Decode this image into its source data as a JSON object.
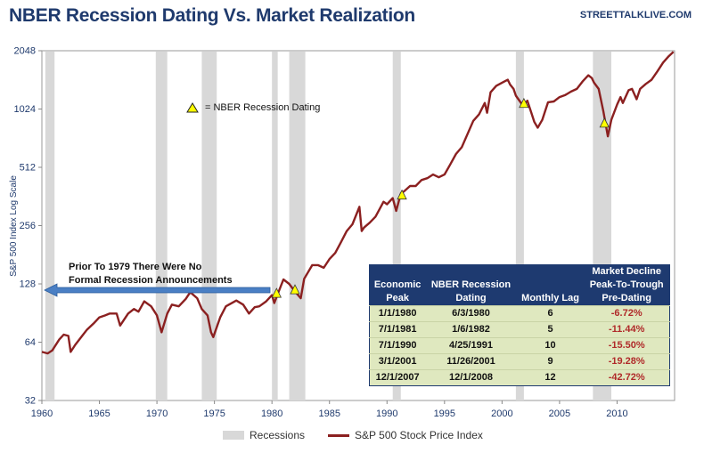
{
  "title": "NBER Recession Dating Vs. Market Realization",
  "source": "STREETTALKLIVE.COM",
  "legend": {
    "recessions": "Recessions",
    "sp500": "S&P 500 Stock Price Index"
  },
  "annotations": {
    "marker_legend": "= NBER Recession Dating",
    "arrow_line1": "Prior To 1979 There Were No",
    "arrow_line2": "Formal Recession Announcements"
  },
  "colors": {
    "line": "#8b2020",
    "recession": "#d8d8d8",
    "marker": "#ffff00",
    "header": "#1e3a70",
    "table_body": "#dfe8bf",
    "negative": "#b02a2a"
  },
  "table": {
    "headers": [
      [
        "Economic",
        "Peak"
      ],
      [
        "NBER Recession",
        "Dating"
      ],
      [
        "",
        "Monthly Lag"
      ],
      [
        "Market Decline",
        "Peak-To-Trough",
        "Pre-Dating"
      ]
    ],
    "rows": [
      [
        "1/1/1980",
        "6/3/1980",
        "6",
        "-6.72%"
      ],
      [
        "7/1/1981",
        "1/6/1982",
        "5",
        "-11.44%"
      ],
      [
        "7/1/1990",
        "4/25/1991",
        "10",
        "-15.50%"
      ],
      [
        "3/1/2001",
        "11/26/2001",
        "9",
        "-19.28%"
      ],
      [
        "12/1/2007",
        "12/1/2008",
        "12",
        "-42.72%"
      ]
    ]
  },
  "chart_data": {
    "type": "line",
    "title": "NBER Recession Dating Vs. Market Realization",
    "ylabel": "S&P 500 Index Log Scale",
    "xlabel": "",
    "yscale": "log2",
    "xlim": [
      1960,
      2015
    ],
    "ylim": [
      32,
      2048
    ],
    "xticks": [
      "1960",
      "1965",
      "1970",
      "1975",
      "1980",
      "1985",
      "1990",
      "1995",
      "2000",
      "2005",
      "2010"
    ],
    "yticks": [
      "32",
      "64",
      "128",
      "256",
      "512",
      "1024",
      "2048"
    ],
    "recessions": [
      [
        1960.3,
        1961.1
      ],
      [
        1969.9,
        1970.9
      ],
      [
        1973.9,
        1975.2
      ],
      [
        1980.0,
        1980.5
      ],
      [
        1981.5,
        1982.9
      ],
      [
        1990.5,
        1991.2
      ],
      [
        2001.2,
        2001.9
      ],
      [
        2007.9,
        2009.5
      ]
    ],
    "markers": [
      {
        "x": 1980.4,
        "y": 115
      },
      {
        "x": 1982.0,
        "y": 120
      },
      {
        "x": 1991.3,
        "y": 370
      },
      {
        "x": 2001.9,
        "y": 1100
      },
      {
        "x": 2008.9,
        "y": 870
      }
    ],
    "series": [
      {
        "name": "S&P 500 Stock Price Index",
        "x": [
          1960.0,
          1960.5,
          1960.9,
          1961.5,
          1961.9,
          1962.3,
          1962.5,
          1962.9,
          1963.5,
          1963.9,
          1964.5,
          1965.0,
          1965.5,
          1965.9,
          1966.5,
          1966.8,
          1967.5,
          1968.0,
          1968.4,
          1968.9,
          1969.5,
          1970.0,
          1970.4,
          1970.9,
          1971.3,
          1971.9,
          1972.5,
          1972.9,
          1973.5,
          1973.9,
          1974.4,
          1974.7,
          1974.9,
          1975.5,
          1976.0,
          1976.9,
          1977.5,
          1978.0,
          1978.5,
          1978.9,
          1979.5,
          1980.0,
          1980.2,
          1980.8,
          1981.0,
          1981.5,
          1982.0,
          1982.5,
          1982.8,
          1983.5,
          1984.0,
          1984.5,
          1985.0,
          1985.5,
          1986.0,
          1986.5,
          1987.0,
          1987.6,
          1987.8,
          1988.0,
          1988.5,
          1989.0,
          1989.7,
          1990.0,
          1990.5,
          1990.8,
          1991.2,
          1991.5,
          1992.0,
          1992.5,
          1993.0,
          1993.5,
          1994.0,
          1994.5,
          1995.0,
          1995.5,
          1996.0,
          1996.5,
          1997.0,
          1997.5,
          1998.0,
          1998.5,
          1998.7,
          1999.0,
          1999.5,
          2000.0,
          2000.5,
          2000.7,
          2001.0,
          2001.2,
          2001.7,
          2001.9,
          2002.2,
          2002.5,
          2002.8,
          2003.1,
          2003.5,
          2004.0,
          2004.5,
          2005.0,
          2005.5,
          2006.0,
          2006.5,
          2007.0,
          2007.5,
          2007.8,
          2008.0,
          2008.4,
          2008.8,
          2009.2,
          2009.5,
          2010.0,
          2010.3,
          2010.5,
          2011.0,
          2011.3,
          2011.7,
          2012.0,
          2012.5,
          2013.0,
          2013.5,
          2014.0,
          2014.5,
          2014.9
        ],
        "values": [
          57,
          56,
          58,
          66,
          70,
          69,
          57,
          62,
          69,
          74,
          80,
          86,
          88,
          90,
          90,
          78,
          90,
          95,
          92,
          104,
          98,
          88,
          72,
          90,
          100,
          98,
          107,
          116,
          108,
          95,
          88,
          72,
          68,
          86,
          98,
          105,
          100,
          90,
          97,
          98,
          104,
          112,
          102,
          126,
          135,
          128,
          117,
          108,
          136,
          160,
          160,
          155,
          172,
          185,
          210,
          240,
          260,
          320,
          240,
          250,
          265,
          285,
          340,
          330,
          355,
          305,
          375,
          385,
          410,
          410,
          440,
          450,
          470,
          455,
          470,
          530,
          600,
          650,
          760,
          890,
          960,
          1100,
          980,
          1250,
          1350,
          1400,
          1450,
          1370,
          1300,
          1200,
          1090,
          1080,
          1130,
          1000,
          880,
          820,
          900,
          1110,
          1120,
          1180,
          1210,
          1260,
          1300,
          1420,
          1530,
          1480,
          1400,
          1300,
          1000,
          740,
          900,
          1080,
          1180,
          1100,
          1280,
          1300,
          1150,
          1300,
          1380,
          1450,
          1600,
          1780,
          1920,
          2020
        ]
      }
    ]
  }
}
